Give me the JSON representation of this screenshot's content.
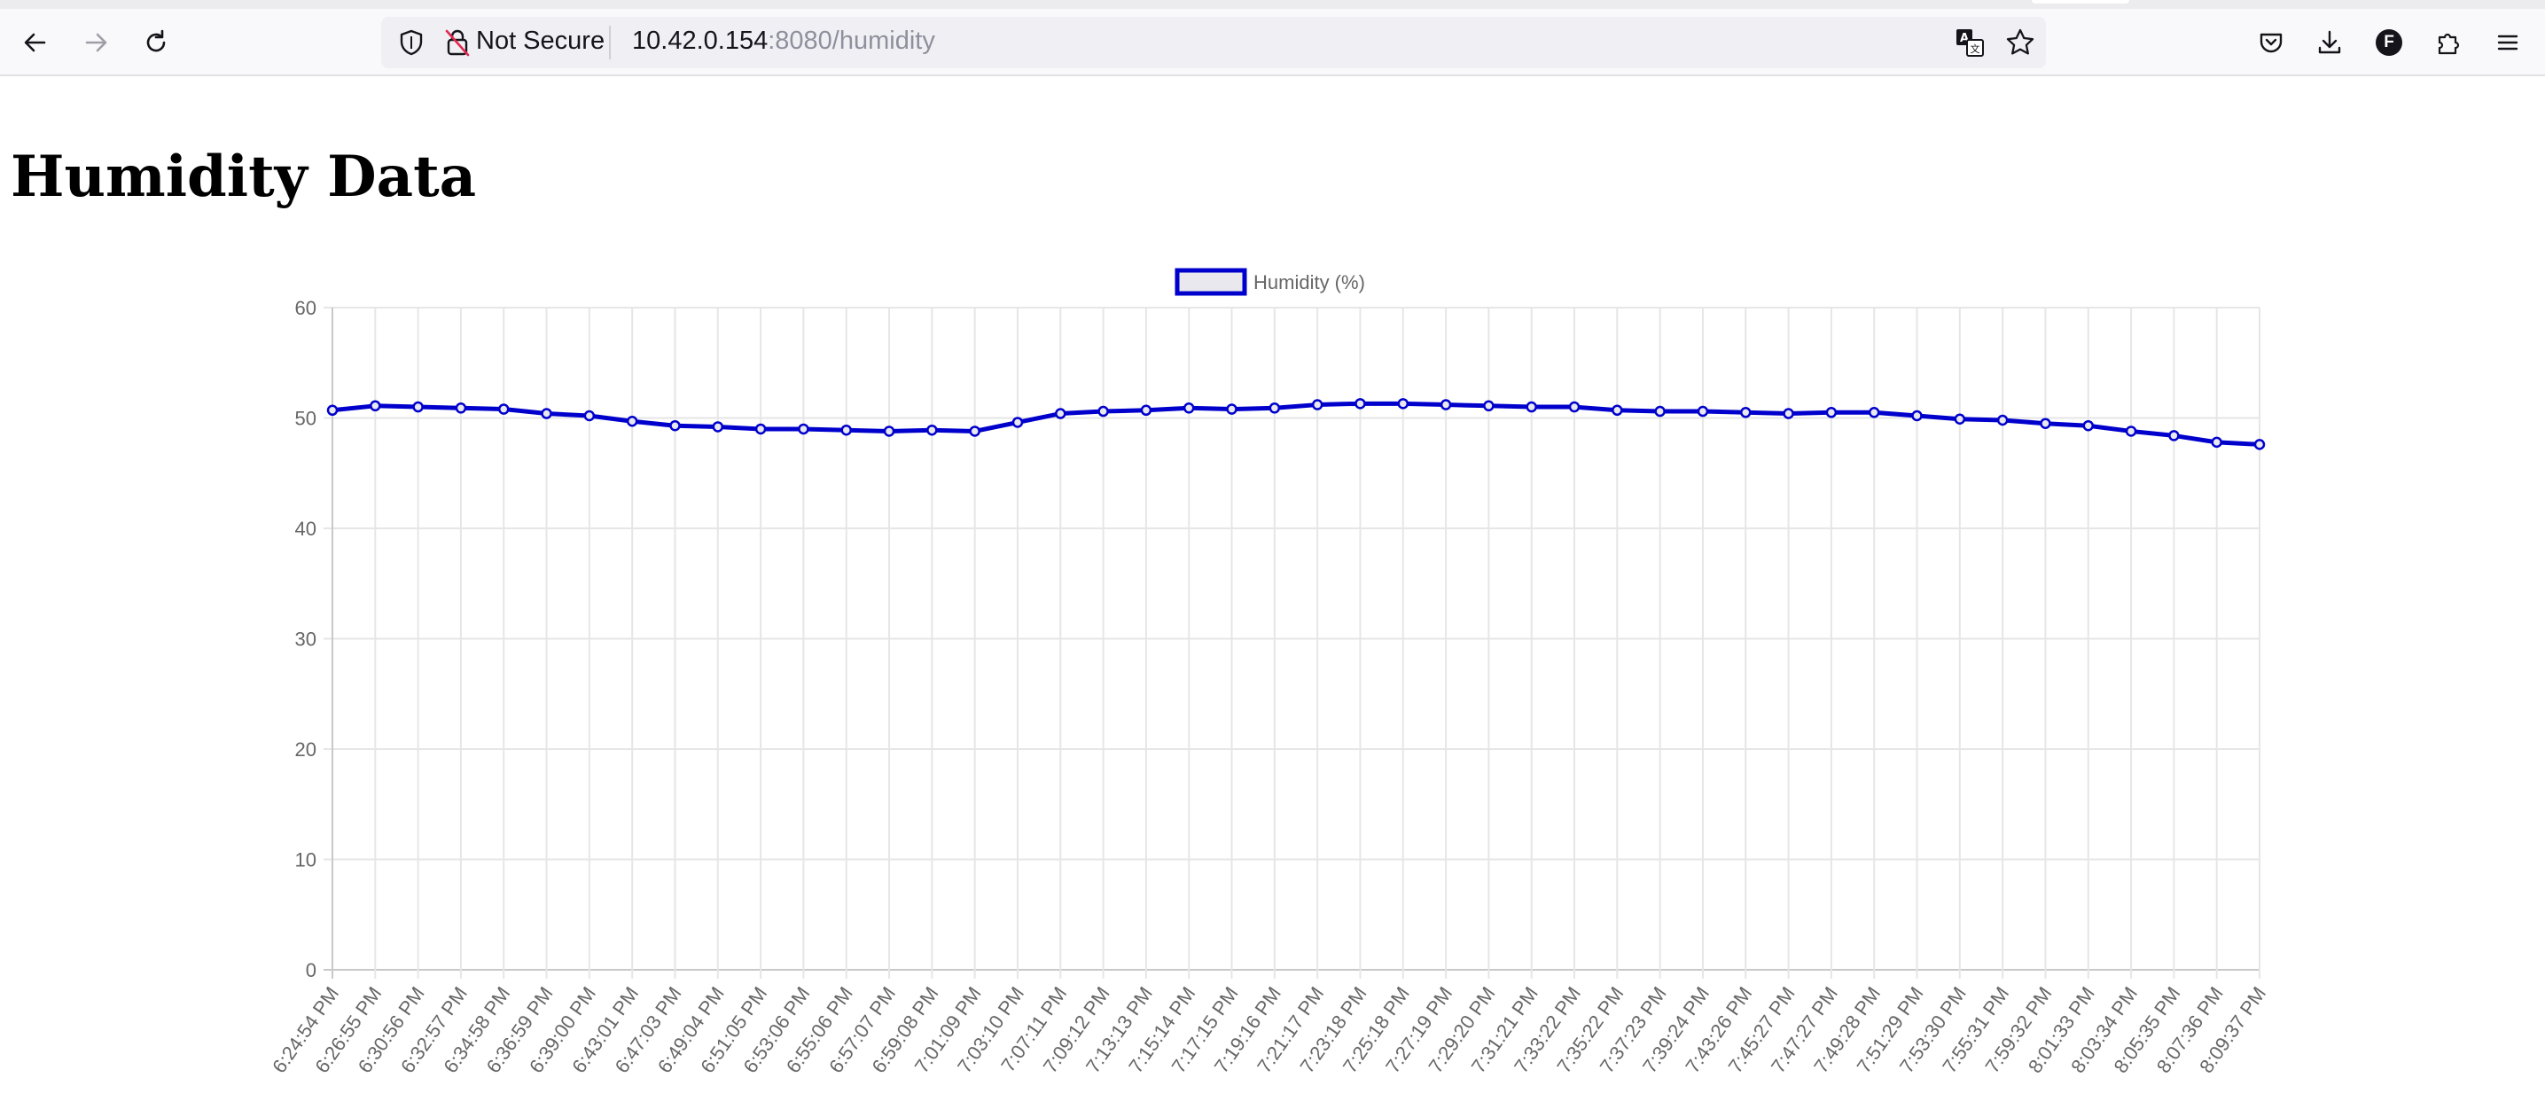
{
  "browser": {
    "security_label": "Not Secure",
    "url_host": "10.42.0.154",
    "url_rest": ":8080/humidity",
    "account_initial": "F"
  },
  "page": {
    "heading": "Humidity Data"
  },
  "chart_data": {
    "type": "line",
    "title": "",
    "xlabel": "",
    "ylabel": "",
    "ylim": [
      0,
      60
    ],
    "yticks": [
      0,
      10,
      20,
      30,
      40,
      50,
      60
    ],
    "grid": true,
    "legend": "top-center",
    "series_color": "#0000cc",
    "categories": [
      "6:24:54 PM",
      "6:26:55 PM",
      "6:30:56 PM",
      "6:32:57 PM",
      "6:34:58 PM",
      "6:36:59 PM",
      "6:39:00 PM",
      "6:43:01 PM",
      "6:47:03 PM",
      "6:49:04 PM",
      "6:51:05 PM",
      "6:53:06 PM",
      "6:55:06 PM",
      "6:57:07 PM",
      "6:59:08 PM",
      "7:01:09 PM",
      "7:03:10 PM",
      "7:07:11 PM",
      "7:09:12 PM",
      "7:13:13 PM",
      "7:15:14 PM",
      "7:17:15 PM",
      "7:19:16 PM",
      "7:21:17 PM",
      "7:23:18 PM",
      "7:25:18 PM",
      "7:27:19 PM",
      "7:29:20 PM",
      "7:31:21 PM",
      "7:33:22 PM",
      "7:35:22 PM",
      "7:37:23 PM",
      "7:39:24 PM",
      "7:43:26 PM",
      "7:45:27 PM",
      "7:47:27 PM",
      "7:49:28 PM",
      "7:51:29 PM",
      "7:53:30 PM",
      "7:55:31 PM",
      "7:59:32 PM",
      "8:01:33 PM",
      "8:03:34 PM",
      "8:05:35 PM",
      "8:07:36 PM",
      "8:09:37 PM"
    ],
    "series": [
      {
        "name": "Humidity (%)",
        "values": [
          50.7,
          51.1,
          51.0,
          50.9,
          50.8,
          50.4,
          50.2,
          49.7,
          49.3,
          49.2,
          49.0,
          49.0,
          48.9,
          48.8,
          48.9,
          48.8,
          49.6,
          50.4,
          50.6,
          50.7,
          50.9,
          50.8,
          50.9,
          51.2,
          51.3,
          51.3,
          51.2,
          51.1,
          51.0,
          51.0,
          50.7,
          50.6,
          50.6,
          50.5,
          50.4,
          50.5,
          50.5,
          50.2,
          49.9,
          49.8,
          49.5,
          49.3,
          48.8,
          48.4,
          47.8,
          47.6
        ]
      }
    ]
  }
}
